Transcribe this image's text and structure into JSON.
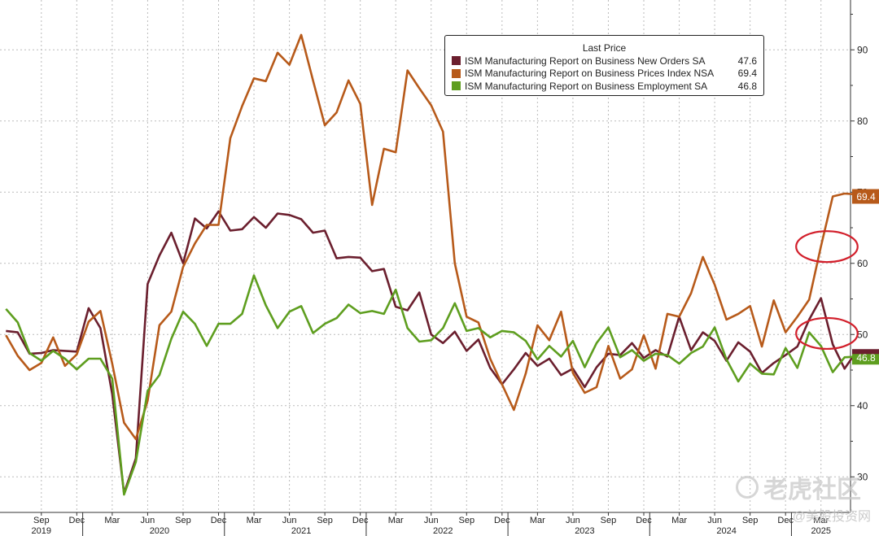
{
  "chart_data": {
    "type": "line",
    "legend": {
      "title": "Last Price",
      "placement": "top-right"
    },
    "ylim": [
      25,
      97
    ],
    "y_ticks": [
      30,
      40,
      50,
      60,
      70,
      80,
      90
    ],
    "y_tick_labels": [
      "30",
      "40",
      "50",
      "60",
      "70",
      "80",
      "90"
    ],
    "x_range": [
      "2019-06",
      "2025-05"
    ],
    "x_month_ticks": [
      {
        "label": "Sep",
        "x": "2019-09"
      },
      {
        "label": "Dec",
        "x": "2019-12"
      },
      {
        "label": "Mar",
        "x": "2020-03"
      },
      {
        "label": "Jun",
        "x": "2020-06"
      },
      {
        "label": "Sep",
        "x": "2020-09"
      },
      {
        "label": "Dec",
        "x": "2020-12"
      },
      {
        "label": "Mar",
        "x": "2021-03"
      },
      {
        "label": "Jun",
        "x": "2021-06"
      },
      {
        "label": "Sep",
        "x": "2021-09"
      },
      {
        "label": "Dec",
        "x": "2021-12"
      },
      {
        "label": "Mar",
        "x": "2022-03"
      },
      {
        "label": "Jun",
        "x": "2022-06"
      },
      {
        "label": "Sep",
        "x": "2022-09"
      },
      {
        "label": "Dec",
        "x": "2022-12"
      },
      {
        "label": "Mar",
        "x": "2023-03"
      },
      {
        "label": "Jun",
        "x": "2023-06"
      },
      {
        "label": "Sep",
        "x": "2023-09"
      },
      {
        "label": "Dec",
        "x": "2023-12"
      },
      {
        "label": "Mar",
        "x": "2024-03"
      },
      {
        "label": "Jun",
        "x": "2024-06"
      },
      {
        "label": "Sep",
        "x": "2024-09"
      },
      {
        "label": "Dec",
        "x": "2024-12"
      },
      {
        "label": "Mar",
        "x": "2025-03"
      }
    ],
    "x_year_labels": [
      {
        "label": "2019",
        "x": "2019-09"
      },
      {
        "label": "2020",
        "x": "2020-07"
      },
      {
        "label": "2021",
        "x": "2021-07"
      },
      {
        "label": "2022",
        "x": "2022-07"
      },
      {
        "label": "2023",
        "x": "2023-07"
      },
      {
        "label": "2024",
        "x": "2024-07"
      },
      {
        "label": "2025",
        "x": "2025-03"
      }
    ],
    "grid": true,
    "highlight_circles": [
      {
        "series": "ISM Manufacturing Report on Business Prices Index NSA",
        "from": "2025-02",
        "to": "2025-05"
      },
      {
        "series": "ISM Manufacturing Report on Business New Orders SA",
        "from": "2025-02",
        "to": "2025-05"
      }
    ],
    "series": [
      {
        "name": "ISM Manufacturing Report on Business New Orders SA",
        "last": "47.6",
        "color": "#6b1f2e",
        "x_start": "2019-06",
        "values": [
          50.5,
          50.3,
          47.3,
          47.4,
          47.8,
          47.7,
          47.6,
          53.7,
          50.9,
          41.6,
          27.7,
          32.6,
          57.1,
          61.1,
          64.3,
          60.0,
          66.3,
          64.9,
          67.3,
          64.6,
          64.8,
          66.5,
          65.0,
          67.0,
          66.8,
          66.2,
          64.3,
          64.6,
          60.7,
          60.9,
          60.8,
          58.9,
          59.2,
          53.9,
          53.4,
          55.9,
          50.0,
          48.8,
          50.4,
          47.7,
          49.3,
          45.3,
          43.0,
          45.1,
          47.4,
          45.6,
          46.6,
          44.3,
          45.2,
          42.6,
          45.4,
          47.3,
          47.1,
          48.8,
          46.7,
          47.8,
          46.9,
          52.5,
          47.8,
          50.3,
          49.1,
          46.3,
          48.9,
          47.6,
          44.6,
          46.0,
          47.1,
          48.3,
          52.1,
          55.1,
          48.6,
          45.2,
          47.6,
          47.6
        ]
      },
      {
        "name": "ISM Manufacturing Report on Business Prices Index NSA",
        "last": "69.4",
        "color": "#b75a1a",
        "x_start": "2019-06",
        "values": [
          49.9,
          47.0,
          45.0,
          46.0,
          49.6,
          45.6,
          47.2,
          51.8,
          53.3,
          45.9,
          37.6,
          35.3,
          40.7,
          51.3,
          53.2,
          59.5,
          62.8,
          65.4,
          65.4,
          77.6,
          82.1,
          86.0,
          85.6,
          89.6,
          87.9,
          92.1,
          85.7,
          79.4,
          81.2,
          85.7,
          82.4,
          68.2,
          76.1,
          75.6,
          87.1,
          84.6,
          82.2,
          78.5,
          60.0,
          52.5,
          51.7,
          46.6,
          43.0,
          39.4,
          44.5,
          51.3,
          49.2,
          53.2,
          44.6,
          41.8,
          42.6,
          48.4,
          43.8,
          45.1,
          49.9,
          45.2,
          52.9,
          52.5,
          55.8,
          60.9,
          57.0,
          52.1,
          52.9,
          54.0,
          48.3,
          54.8,
          50.3,
          52.5,
          54.9,
          62.4,
          69.4,
          69.8,
          69.7,
          69.4
        ]
      },
      {
        "name": "ISM Manufacturing Report on Business Employment SA",
        "last": "46.8",
        "color": "#5e9e1f",
        "x_start": "2019-06",
        "values": [
          53.6,
          51.7,
          47.4,
          46.3,
          47.7,
          46.6,
          45.1,
          46.6,
          46.6,
          43.8,
          27.5,
          32.1,
          42.1,
          44.3,
          49.4,
          53.2,
          51.5,
          48.4,
          51.5,
          51.5,
          52.9,
          58.3,
          54.1,
          50.9,
          53.2,
          54.0,
          50.2,
          51.5,
          52.3,
          54.2,
          53.0,
          53.3,
          52.9,
          56.3,
          50.9,
          49.0,
          49.2,
          50.9,
          54.4,
          50.5,
          50.9,
          49.6,
          50.5,
          50.3,
          49.1,
          46.5,
          48.4,
          46.9,
          49.1,
          45.4,
          48.8,
          51.0,
          46.8,
          47.8,
          46.3,
          47.3,
          47.1,
          45.9,
          47.4,
          48.3,
          51.0,
          46.5,
          43.4,
          45.9,
          44.5,
          44.4,
          48.1,
          45.3,
          50.3,
          48.4,
          44.7,
          46.8,
          46.9,
          46.8
        ]
      }
    ]
  },
  "axis_badges": [
    {
      "text": "69.4",
      "value": 69.4,
      "color": "#b75a1a"
    },
    {
      "text": "46.8",
      "value": 46.8,
      "color": "#5e9e1f"
    }
  ],
  "watermark": {
    "text": "老虎社区",
    "subtext": "@美股投资网"
  }
}
